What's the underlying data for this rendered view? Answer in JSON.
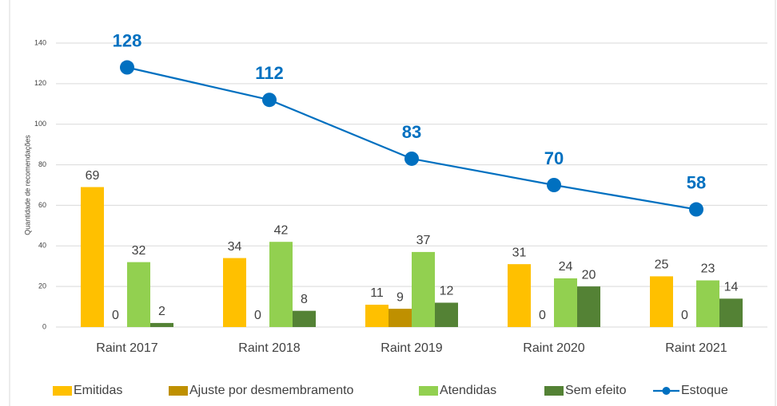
{
  "chart_data": {
    "type": "bar",
    "y_label": "Quantidade de recomendações",
    "categories": [
      "Raint 2017",
      "Raint 2018",
      "Raint 2019",
      "Raint 2020",
      "Raint 2021"
    ],
    "series": [
      {
        "name": "Emitidas",
        "color": "#ffc000",
        "values": [
          69,
          34,
          11,
          31,
          25
        ]
      },
      {
        "name": "Ajuste por desmembramento",
        "color": "#bf9000",
        "values": [
          0,
          0,
          9,
          0,
          0
        ]
      },
      {
        "name": "Atendidas",
        "color": "#92d050",
        "values": [
          32,
          42,
          37,
          24,
          23
        ]
      },
      {
        "name": "Sem efeito",
        "color": "#548235",
        "values": [
          2,
          8,
          12,
          20,
          14
        ]
      },
      {
        "name": "Estoque",
        "color": "#0070c0",
        "type": "line",
        "values": [
          128,
          112,
          83,
          70,
          58
        ]
      }
    ],
    "ylim": [
      0,
      140
    ],
    "yticks": [
      0,
      20,
      40,
      60,
      80,
      100,
      120,
      140
    ],
    "grid": true,
    "legend": "bottom"
  }
}
